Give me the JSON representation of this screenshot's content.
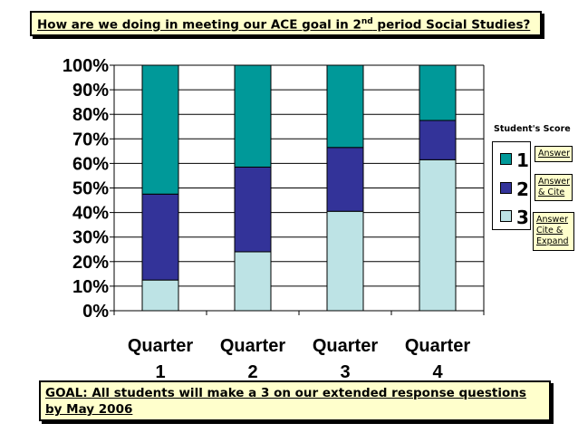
{
  "header": {
    "title_pre": "How are we doing in meeting our ACE goal in 2",
    "title_sup": "nd",
    "title_post": " period Social Studies?"
  },
  "goal": {
    "text": "GOAL:  All students will make a 3 on our extended response questions by May 2006"
  },
  "legend": {
    "title": "Student's Score",
    "items": [
      {
        "label": "1",
        "note": "Answer",
        "color": "#009999"
      },
      {
        "label": "2",
        "note": "Answer & Cite",
        "color": "#333399"
      },
      {
        "label": "3",
        "note": "Answer Cite & Expand",
        "color": "#bde3e5"
      }
    ]
  },
  "chart_data": {
    "type": "bar",
    "stacked": true,
    "normalized": true,
    "categories": [
      [
        "Quarter",
        "1"
      ],
      [
        "Quarter",
        "2"
      ],
      [
        "Quarter",
        "3"
      ],
      [
        "Quarter",
        "4"
      ]
    ],
    "series": [
      {
        "name": "3",
        "values": [
          12.5,
          24,
          40.5,
          61.5
        ],
        "color": "#bde3e5"
      },
      {
        "name": "2",
        "values": [
          35,
          34.5,
          26,
          16
        ],
        "color": "#333399"
      },
      {
        "name": "1",
        "values": [
          52.5,
          41.5,
          33.5,
          22.5
        ],
        "color": "#009999"
      }
    ],
    "yticks": [
      "0%",
      "10%",
      "20%",
      "30%",
      "40%",
      "50%",
      "60%",
      "70%",
      "80%",
      "90%",
      "100%"
    ],
    "ylim": [
      0,
      100
    ],
    "grid": true,
    "legend_position": "right"
  }
}
